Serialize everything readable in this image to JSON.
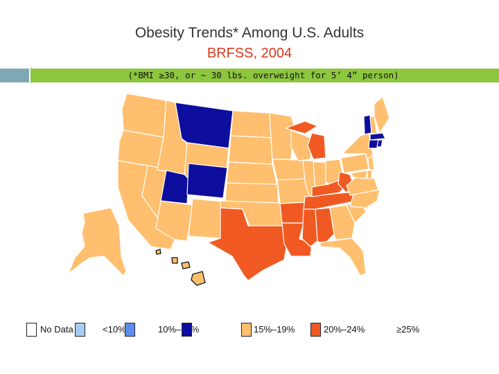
{
  "title": "Obesity Trends* Among U.S. Adults",
  "subtitle": "BRFSS, 2004",
  "note": "(*BMI ≥30, or ~ 30 lbs. overweight for 5’ 4” person)",
  "colors": {
    "no_data": "#ffffff",
    "lt10": "#a6ccf0",
    "c10_14": "#5b8ef0",
    "c15_19": "#ffbf6e",
    "c20_24": "#f05a22",
    "ge25": "#0d0d9e",
    "header_band": "#8dc63f",
    "subtitle": "#d9391c"
  },
  "legend": [
    {
      "label": "No Data",
      "color": "#ffffff"
    },
    {
      "label": "<10%",
      "color": "#a6ccf0"
    },
    {
      "label": "10%–14%",
      "color": "#5b8ef0"
    },
    {
      "label": "15%–19%",
      "color": "#ffbf6e"
    },
    {
      "label": "20%–24%",
      "color": "#f05a22"
    },
    {
      "label": "≥25%",
      "color": "#0d0d9e"
    }
  ],
  "map_colors": {
    "15-19%": [
      "WA",
      "OR",
      "CA",
      "NV",
      "ID",
      "WY",
      "AZ",
      "NM",
      "ND",
      "SD",
      "NE",
      "KS",
      "OK",
      "MN",
      "IA",
      "MO",
      "WI",
      "IL",
      "IN",
      "OH",
      "PA",
      "NY",
      "VA",
      "NC",
      "SC",
      "GA",
      "FL",
      "ME",
      "NH",
      "NJ",
      "MD",
      "DE",
      "AK",
      "HI"
    ],
    "20-24%": [
      "TX",
      "LA",
      "AR",
      "MS",
      "AL",
      "TN",
      "KY",
      "WV",
      "MI"
    ],
    "10-14%": [
      "MT",
      "UT",
      "CO",
      "VT",
      "MA",
      "CT",
      "RI"
    ]
  }
}
